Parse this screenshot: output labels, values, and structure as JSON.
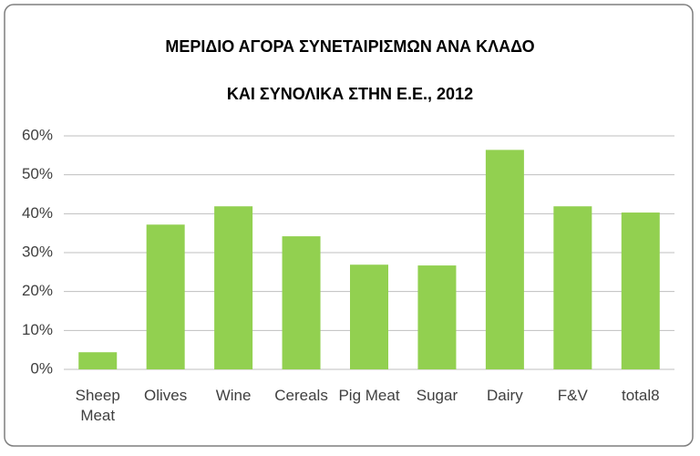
{
  "chart_data": {
    "type": "bar",
    "title": [
      "ΜΕΡΙΔΙΟ ΑΓΟΡΑ ΣΥΝΕΤΑΙΡΙΣΜΩΝ ΑΝΑ ΚΛΑΔΟ",
      "ΚΑΙ ΣΥΝΟΛΙΚΑ ΣΤΗΝ Ε.Ε., 2012"
    ],
    "categories": [
      "Sheep Meat",
      "Olives",
      "Wine",
      "Cereals",
      "Pig Meat",
      "Sugar",
      "Dairy",
      "F&V",
      "total8"
    ],
    "values": [
      4.4,
      37.2,
      41.9,
      34.2,
      26.9,
      26.7,
      56.4,
      41.9,
      40.3
    ],
    "color": "#92d050",
    "ylim": [
      0,
      60
    ],
    "yticks": [
      {
        "value": 0,
        "label": "0%"
      },
      {
        "value": 10,
        "label": "10%"
      },
      {
        "value": 20,
        "label": "20%"
      },
      {
        "value": 30,
        "label": "30%"
      },
      {
        "value": 40,
        "label": "40%"
      },
      {
        "value": 50,
        "label": "50%"
      },
      {
        "value": 60,
        "label": "60%"
      }
    ],
    "grid": true
  }
}
